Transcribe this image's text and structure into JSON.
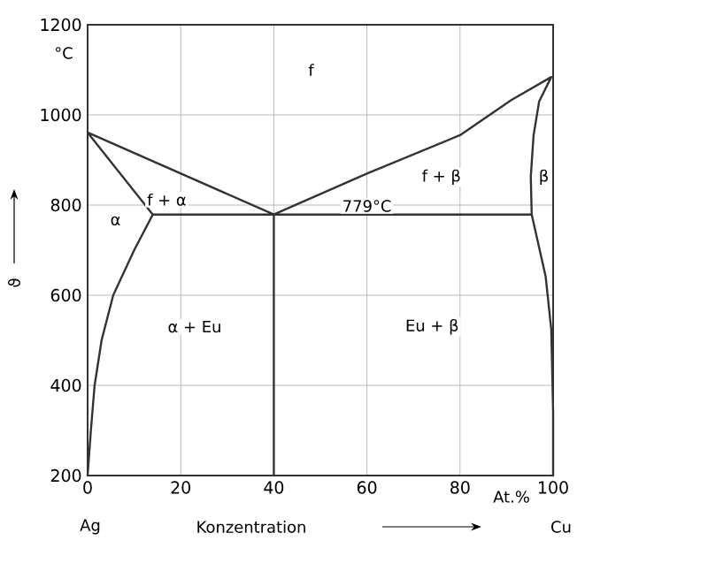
{
  "chart_data": {
    "type": "line",
    "xlabel": "Konzentration",
    "ylabel": "ϑ",
    "xlim": [
      0,
      100
    ],
    "ylim": [
      200,
      1200
    ],
    "xticks": [
      0,
      20,
      40,
      60,
      80,
      100
    ],
    "yticks": [
      200,
      400,
      600,
      800,
      1000,
      1200
    ],
    "grid": true,
    "marker": "none",
    "line_style": "solid",
    "series": [
      {
        "color": "#333333",
        "x": [
          0,
          0.7,
          1.5,
          3,
          5.5,
          10,
          14,
          0,
          40,
          60,
          80,
          91,
          99.6,
          97,
          95.8,
          95.2,
          95.4,
          98.4,
          99.6,
          100,
          100,
          null,
          14,
          95.4,
          null,
          40,
          40
        ],
        "values": [
          200,
          300,
          400,
          500,
          600,
          700,
          779,
          961,
          779,
          870,
          955,
          1033,
          1084,
          1030,
          955,
          863,
          779,
          641,
          524,
          340,
          200,
          null,
          779,
          779,
          null,
          779,
          200
        ]
      }
    ],
    "annotations": [
      "°C",
      "At.%",
      "Ag",
      "Cu",
      "f",
      "f + α",
      "α",
      "f + β",
      "β",
      "α + Eu",
      "Eu + β",
      "779°C"
    ]
  }
}
